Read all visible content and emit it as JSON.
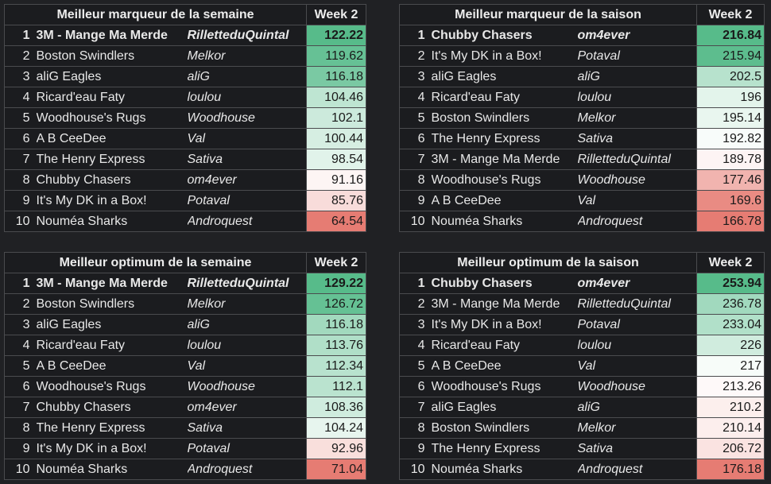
{
  "colors": {
    "page_background": "#202124",
    "table_background": "#1b1c1f",
    "text": "#e8e8e8",
    "score_scale_high": "#57bb8a",
    "score_scale_mid": "#ffffff",
    "score_scale_low": "#e67c73"
  },
  "week_label": "Week 2",
  "boards": [
    {
      "title": "Meilleur marqueur de la semaine",
      "rows": [
        {
          "rank": "1",
          "team": "3M - Mange Ma Merde",
          "owner": "RilletteduQuintal",
          "score": "122.22"
        },
        {
          "rank": "2",
          "team": "Boston Swindlers",
          "owner": "Melkor",
          "score": "119.62"
        },
        {
          "rank": "3",
          "team": "aliG Eagles",
          "owner": "aliG",
          "score": "116.18"
        },
        {
          "rank": "4",
          "team": "Ricard'eau Faty",
          "owner": "loulou",
          "score": "104.46"
        },
        {
          "rank": "5",
          "team": "Woodhouse's Rugs",
          "owner": "Woodhouse",
          "score": "102.1"
        },
        {
          "rank": "6",
          "team": "A B CeeDee",
          "owner": "Val",
          "score": "100.44"
        },
        {
          "rank": "7",
          "team": "The Henry Express",
          "owner": "Sativa",
          "score": "98.54"
        },
        {
          "rank": "8",
          "team": "Chubby Chasers",
          "owner": "om4ever",
          "score": "91.16"
        },
        {
          "rank": "9",
          "team": "It's My DK in a Box!",
          "owner": "Potaval",
          "score": "85.76"
        },
        {
          "rank": "10",
          "team": "Nouméa Sharks",
          "owner": "Androquest",
          "score": "64.54"
        }
      ]
    },
    {
      "title": "Meilleur marqueur de la saison",
      "rows": [
        {
          "rank": "1",
          "team": "Chubby Chasers",
          "owner": "om4ever",
          "score": "216.84"
        },
        {
          "rank": "2",
          "team": "It's My DK in a Box!",
          "owner": "Potaval",
          "score": "215.94"
        },
        {
          "rank": "3",
          "team": "aliG Eagles",
          "owner": "aliG",
          "score": "202.5"
        },
        {
          "rank": "4",
          "team": "Ricard'eau Faty",
          "owner": "loulou",
          "score": "196"
        },
        {
          "rank": "5",
          "team": "Boston Swindlers",
          "owner": "Melkor",
          "score": "195.14"
        },
        {
          "rank": "6",
          "team": "The Henry Express",
          "owner": "Sativa",
          "score": "192.82"
        },
        {
          "rank": "7",
          "team": "3M - Mange Ma Merde",
          "owner": "RilletteduQuintal",
          "score": "189.78"
        },
        {
          "rank": "8",
          "team": "Woodhouse's Rugs",
          "owner": "Woodhouse",
          "score": "177.46"
        },
        {
          "rank": "9",
          "team": "A B CeeDee",
          "owner": "Val",
          "score": "169.6"
        },
        {
          "rank": "10",
          "team": "Nouméa Sharks",
          "owner": "Androquest",
          "score": "166.78"
        }
      ]
    },
    {
      "title": "Meilleur optimum de la semaine",
      "rows": [
        {
          "rank": "1",
          "team": "3M - Mange Ma Merde",
          "owner": "RilletteduQuintal",
          "score": "129.22"
        },
        {
          "rank": "2",
          "team": "Boston Swindlers",
          "owner": "Melkor",
          "score": "126.72"
        },
        {
          "rank": "3",
          "team": "aliG Eagles",
          "owner": "aliG",
          "score": "116.18"
        },
        {
          "rank": "4",
          "team": "Ricard'eau Faty",
          "owner": "loulou",
          "score": "113.76"
        },
        {
          "rank": "5",
          "team": "A B CeeDee",
          "owner": "Val",
          "score": "112.34"
        },
        {
          "rank": "6",
          "team": "Woodhouse's Rugs",
          "owner": "Woodhouse",
          "score": "112.1"
        },
        {
          "rank": "7",
          "team": "Chubby Chasers",
          "owner": "om4ever",
          "score": "108.36"
        },
        {
          "rank": "8",
          "team": "The Henry Express",
          "owner": "Sativa",
          "score": "104.24"
        },
        {
          "rank": "9",
          "team": "It's My DK in a Box!",
          "owner": "Potaval",
          "score": "92.96"
        },
        {
          "rank": "10",
          "team": "Nouméa Sharks",
          "owner": "Androquest",
          "score": "71.04"
        }
      ]
    },
    {
      "title": "Meilleur optimum de la saison",
      "rows": [
        {
          "rank": "1",
          "team": "Chubby Chasers",
          "owner": "om4ever",
          "score": "253.94"
        },
        {
          "rank": "2",
          "team": "3M - Mange Ma Merde",
          "owner": "RilletteduQuintal",
          "score": "236.78"
        },
        {
          "rank": "3",
          "team": "It's My DK in a Box!",
          "owner": "Potaval",
          "score": "233.04"
        },
        {
          "rank": "4",
          "team": "Ricard'eau Faty",
          "owner": "loulou",
          "score": "226"
        },
        {
          "rank": "5",
          "team": "A B CeeDee",
          "owner": "Val",
          "score": "217"
        },
        {
          "rank": "6",
          "team": "Woodhouse's Rugs",
          "owner": "Woodhouse",
          "score": "213.26"
        },
        {
          "rank": "7",
          "team": "aliG Eagles",
          "owner": "aliG",
          "score": "210.2"
        },
        {
          "rank": "8",
          "team": "Boston Swindlers",
          "owner": "Melkor",
          "score": "210.14"
        },
        {
          "rank": "9",
          "team": "The Henry Express",
          "owner": "Sativa",
          "score": "206.72"
        },
        {
          "rank": "10",
          "team": "Nouméa Sharks",
          "owner": "Androquest",
          "score": "176.18"
        }
      ]
    }
  ]
}
